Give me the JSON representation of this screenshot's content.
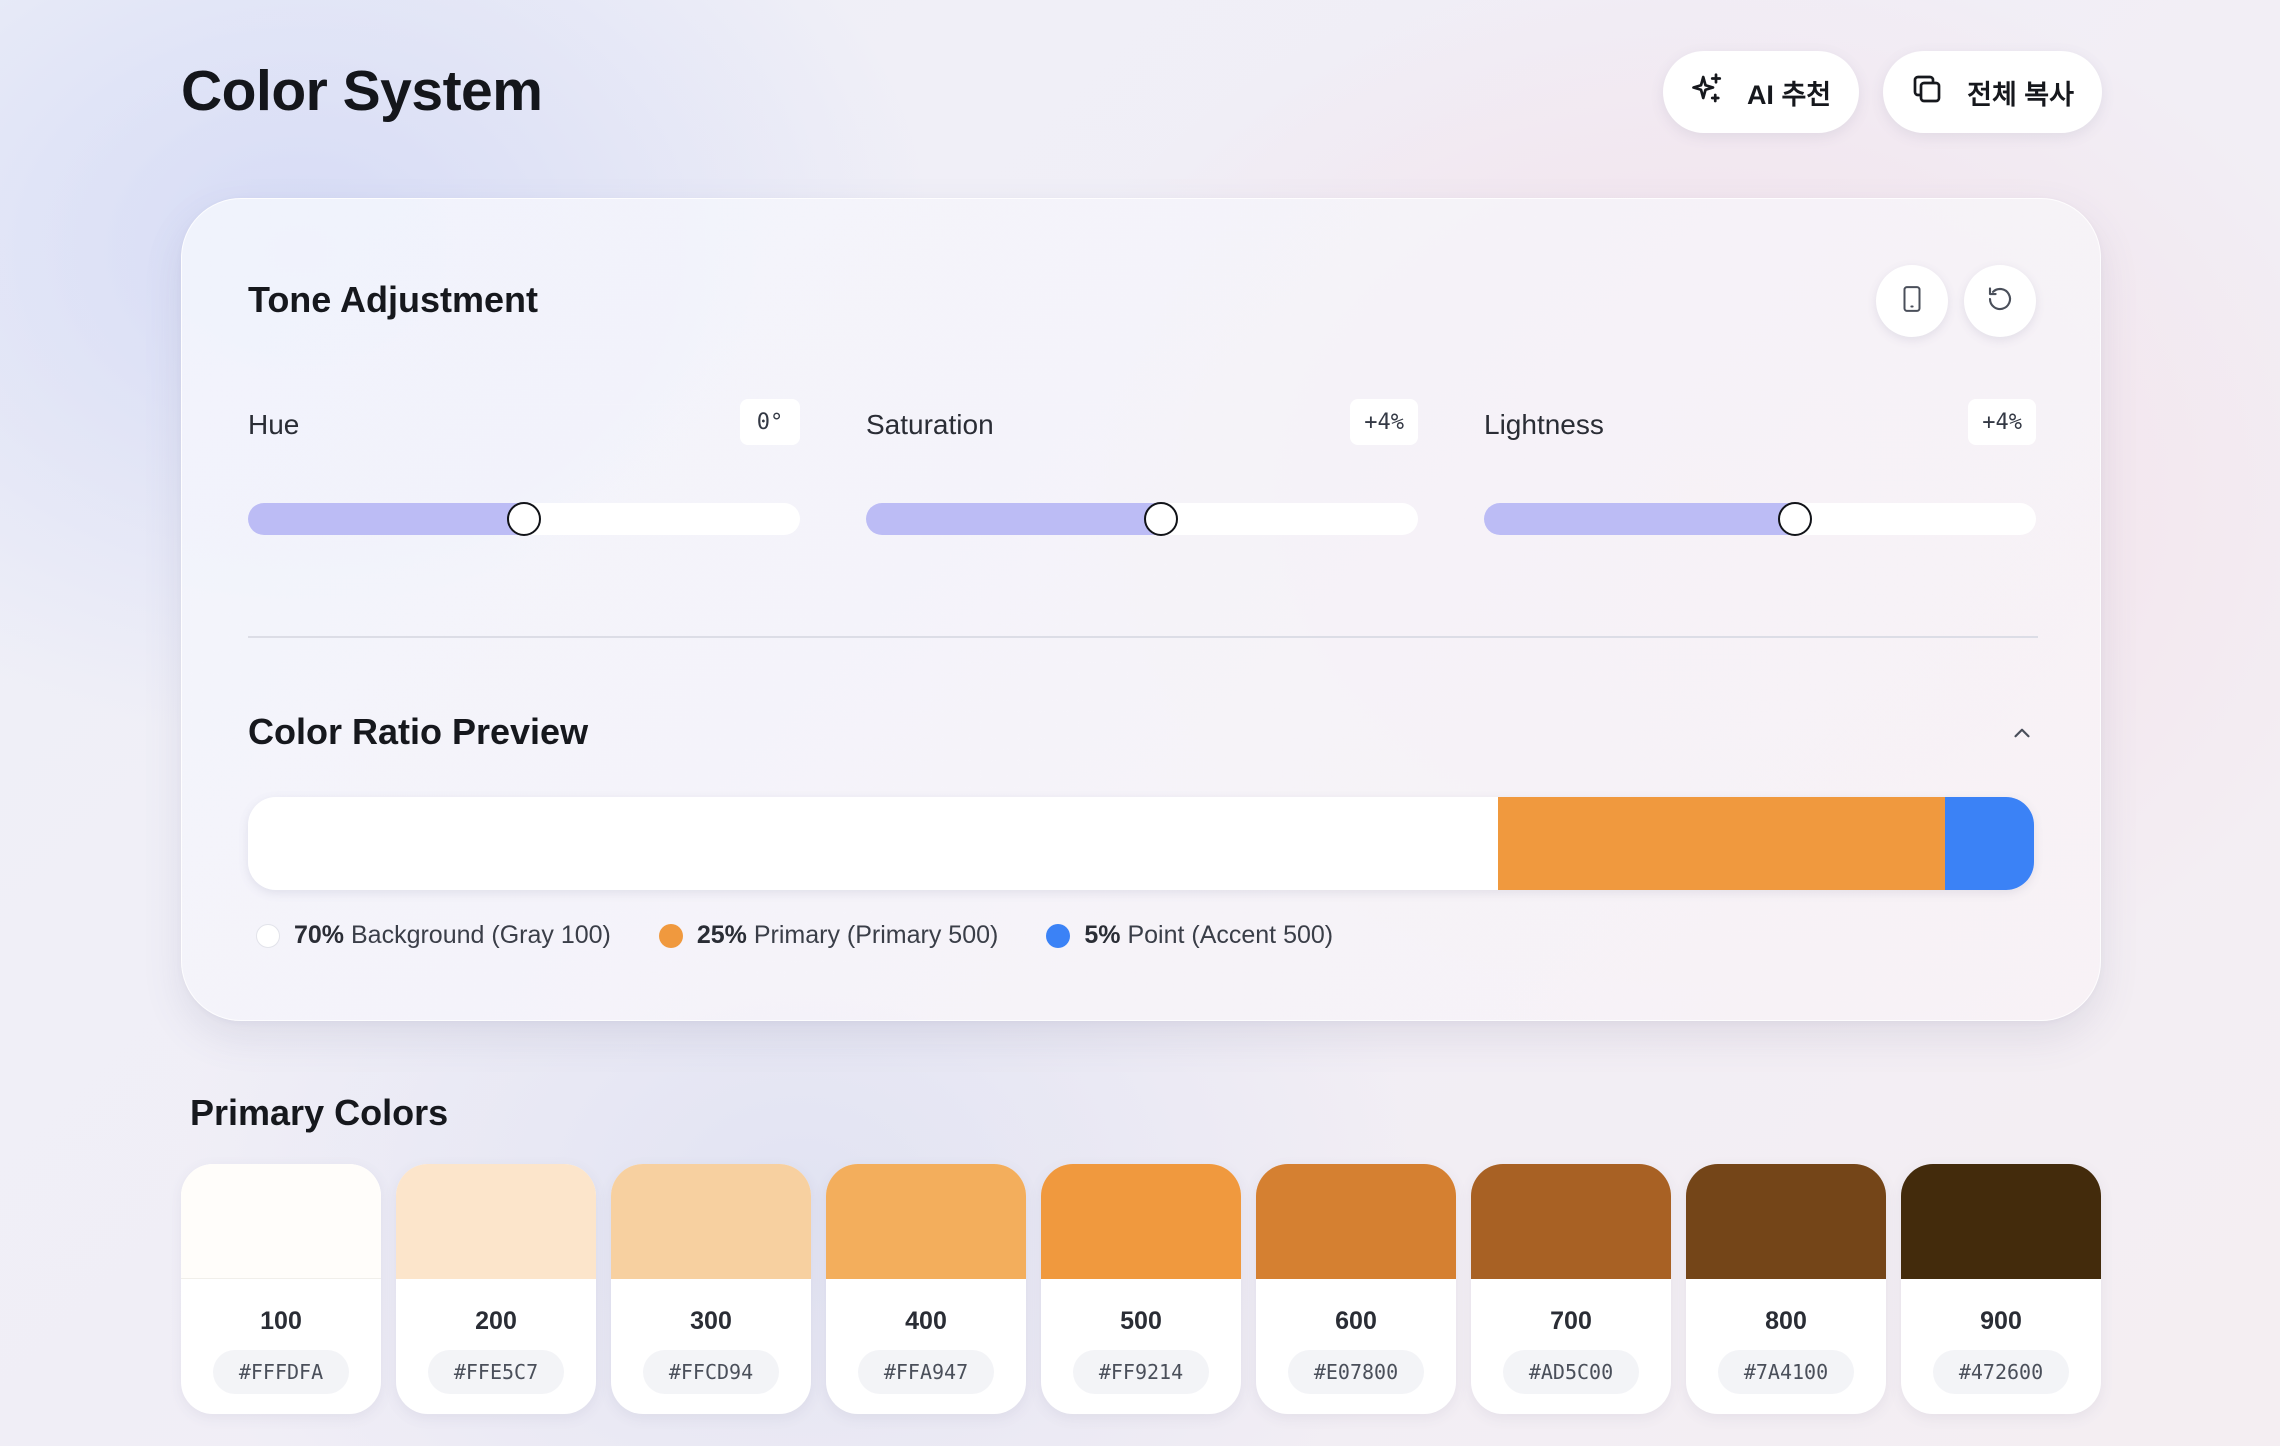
{
  "header": {
    "title": "Color System",
    "ai_button_label": "AI 추천",
    "copy_all_label": "전체 복사"
  },
  "tone": {
    "title": "Tone Adjustment",
    "sliders": [
      {
        "label": "Hue",
        "value": "0°",
        "fraction": 0.5
      },
      {
        "label": "Saturation",
        "value": "+4%",
        "fraction": 0.535
      },
      {
        "label": "Lightness",
        "value": "+4%",
        "fraction": 0.563
      }
    ]
  },
  "ratio": {
    "title": "Color Ratio Preview",
    "segments": [
      {
        "percent_value": 70,
        "percent": "70%",
        "label": "Background (Gray 100)",
        "color": "#FFFFFF"
      },
      {
        "percent_value": 25,
        "percent": "25%",
        "label": "Primary (Primary 500)",
        "color": "#F0993E"
      },
      {
        "percent_value": 5,
        "percent": "5%",
        "label": "Point (Accent 500)",
        "color": "#3B82F6"
      }
    ]
  },
  "palette": {
    "title": "Primary Colors",
    "swatches": [
      {
        "step": "100",
        "hex": "#FFFDFA"
      },
      {
        "step": "200",
        "hex": "#FFE5C7"
      },
      {
        "step": "300",
        "hex": "#FFCD94"
      },
      {
        "step": "400",
        "hex": "#FFA947"
      },
      {
        "step": "500",
        "hex": "#FF9214"
      },
      {
        "step": "600",
        "hex": "#E07800"
      },
      {
        "step": "700",
        "hex": "#AD5C00"
      },
      {
        "step": "800",
        "hex": "#7A4100"
      },
      {
        "step": "900",
        "hex": "#472600"
      }
    ],
    "display_colors": [
      "#FFFDFA",
      "#FCE5CB",
      "#F7D0A0",
      "#F3AE5C",
      "#F0993E",
      "#D58031",
      "#A86124",
      "#744518",
      "#432B0C"
    ]
  },
  "icons": {
    "ai": "sparkles-icon",
    "copy": "copy-icon",
    "device": "mobile-device-icon",
    "reset": "reset-icon",
    "collapse": "chevron-up-icon"
  }
}
